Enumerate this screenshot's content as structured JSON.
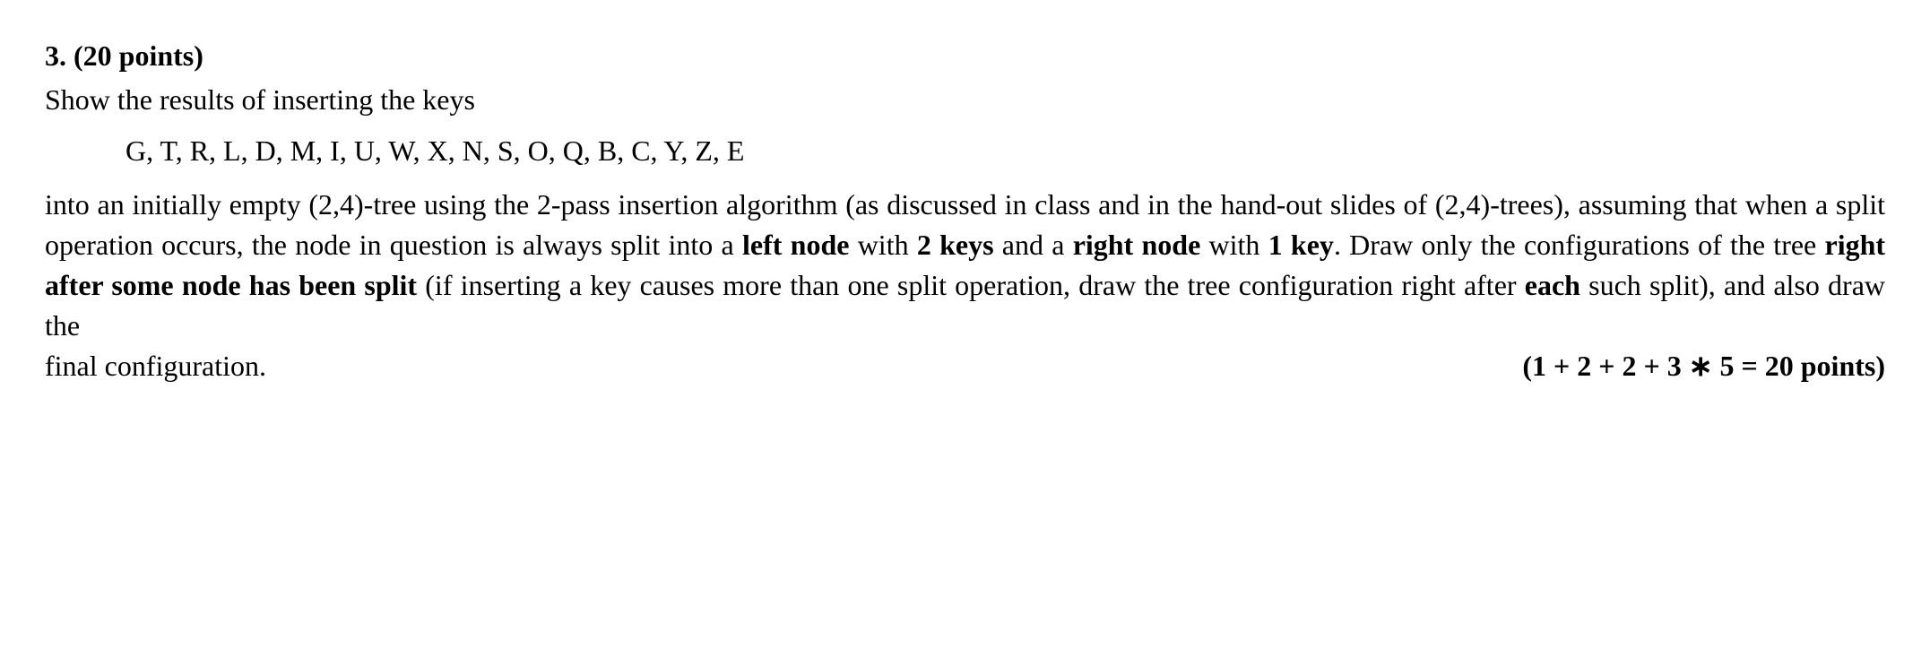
{
  "question": {
    "heading": "3. (20 points)",
    "intro": "Show the results of inserting the keys",
    "keys": "G, T, R, L, D, M, I, U, W, X, N, S, O, Q, B, C, Y, Z, E",
    "body_1": "into an initially empty (2,4)-tree using the 2-pass insertion algorithm (as discussed in class and in the hand-out slides of (2,4)-trees), assuming that when a split operation occurs, the node in question is always split into a ",
    "bold_left_node": "left node",
    "body_2": " with ",
    "bold_2keys": "2 keys",
    "body_3": " and a ",
    "bold_right_node": "right node",
    "body_4": " with ",
    "bold_1key": "1 key",
    "body_5": ". Draw only the configurations of the tree ",
    "bold_right_after": "right after some node has been split",
    "body_6": " (if inserting a key causes more than one split operation, draw the tree configuration right after ",
    "bold_each": "each",
    "body_7": " such split), and also draw the ",
    "final_config": "final configuration.",
    "points_formula": "(1 + 2 + 2 + 3 ∗ 5 = 20 points)"
  }
}
